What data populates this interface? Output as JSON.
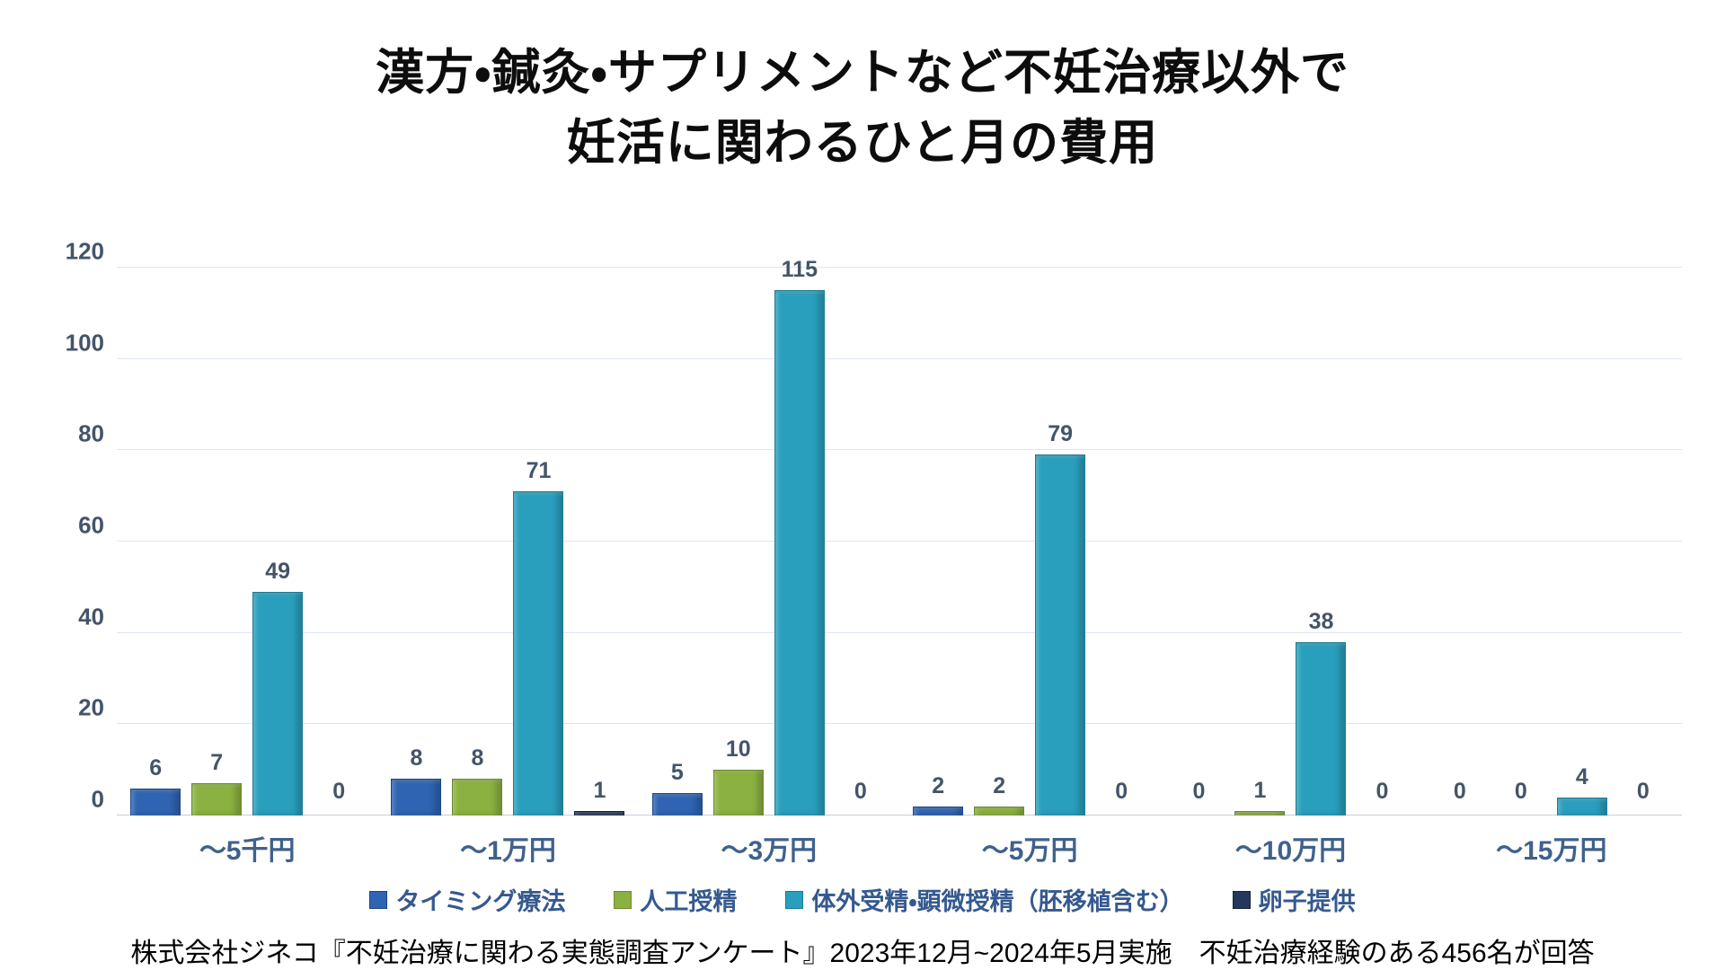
{
  "title": {
    "line1": "漢方・鍼灸・サプリメントなど不妊治療以外で",
    "line2": "妊活に関わるひと月の費用"
  },
  "footer": {
    "source": "株式会社ジネコ『不妊治療に関わる実態調査アンケート』2023年12月~2024年5月実施　不妊治療経験のある456名が回答"
  },
  "colors": {
    "grid": "#dce6f1",
    "axis_line": "#c3cfde",
    "tick_label": "#44546a",
    "value_label": "#44546a",
    "category_label": "#3f618c",
    "legend_text": "#35598f",
    "background": "#ffffff"
  },
  "chart_data": {
    "type": "bar",
    "title": "漢方・鍼灸・サプリメントなど不妊治療以外で妊活に関わるひと月の費用",
    "xlabel": "",
    "ylabel": "",
    "ylim": [
      0,
      120
    ],
    "yticks": [
      0,
      20,
      40,
      60,
      80,
      100,
      120
    ],
    "grid": true,
    "legend_position": "bottom",
    "value_labels": true,
    "categories": [
      "～5千円",
      "～1万円",
      "～3万円",
      "～5万円",
      "～10万円",
      "～15万円"
    ],
    "series": [
      {
        "name": "タイミング療法",
        "color": "#2e64b1",
        "border": "#1c4587",
        "values": [
          6,
          8,
          5,
          2,
          0,
          0
        ]
      },
      {
        "name": "人工授精",
        "color": "#8bb240",
        "border": "#6b8a2f",
        "values": [
          7,
          8,
          10,
          2,
          1,
          0
        ]
      },
      {
        "name": "体外受精・顕微授精（胚移植含む）",
        "color": "#299fbd",
        "border": "#1c7a94",
        "values": [
          49,
          71,
          115,
          79,
          38,
          4
        ]
      },
      {
        "name": "卵子提供",
        "color": "#24385c",
        "border": "#16233b",
        "values": [
          0,
          1,
          0,
          0,
          0,
          0
        ]
      }
    ]
  }
}
